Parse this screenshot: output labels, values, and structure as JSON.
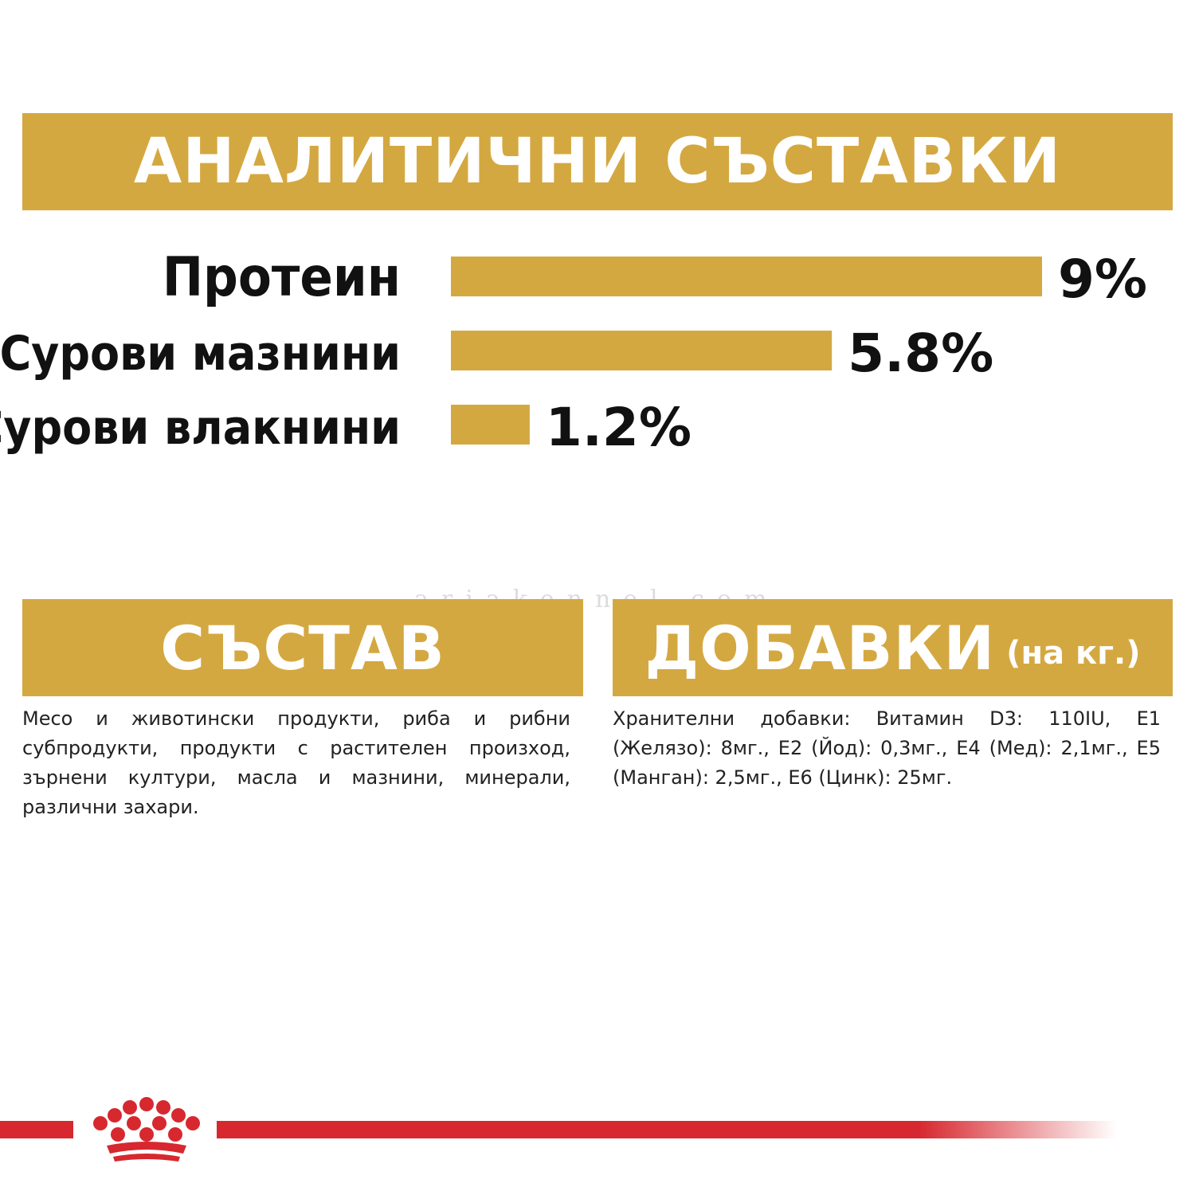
{
  "header": {
    "title": "АНАЛИТИЧНИ СЪСТАВКИ"
  },
  "chart_data": {
    "type": "bar",
    "orientation": "horizontal",
    "categories": [
      "Протеин",
      "Сурови мазнини",
      "Сурови влакнини"
    ],
    "values": [
      9,
      5.8,
      1.2
    ],
    "value_labels": [
      "9%",
      "5.8%",
      "1.2%"
    ],
    "unit": "%",
    "xlim": [
      0,
      9
    ],
    "bar_color": "#d4a841",
    "grid": false,
    "legend": "none"
  },
  "composition": {
    "title": "СЪСТАВ",
    "text": "Месо и животински продукти, риба и рибни субпродукти, продукти с растителен произход, зърнени култури, масла и мазнини, минерали, различни захари."
  },
  "additives": {
    "title": "ДОБАВКИ",
    "subtitle": "(на кг.)",
    "text": "Хранителни добавки: Витамин D3: 110IU, E1 (Желязо): 8мг., E2 (Йод): 0,3мг., E4 (Мед): 2,1мг., E5 (Манган): 2,5мг., E6 (Цинк): 25мг."
  },
  "watermark": {
    "text": "ariakennel.com"
  },
  "brand": {
    "logo": "royal-canin-crown-logo",
    "color": "#d7282f",
    "accent": "#d4a841"
  }
}
